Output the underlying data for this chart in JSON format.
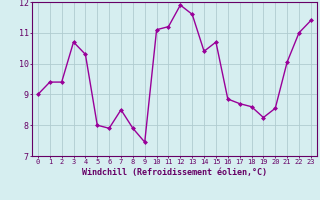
{
  "x": [
    0,
    1,
    2,
    3,
    4,
    5,
    6,
    7,
    8,
    9,
    10,
    11,
    12,
    13,
    14,
    15,
    16,
    17,
    18,
    19,
    20,
    21,
    22,
    23
  ],
  "y": [
    9.0,
    9.4,
    9.4,
    10.7,
    10.3,
    8.0,
    7.9,
    8.5,
    7.9,
    7.45,
    11.1,
    11.2,
    11.9,
    11.6,
    10.4,
    10.7,
    8.85,
    8.7,
    8.6,
    8.25,
    8.55,
    10.05,
    11.0,
    11.4
  ],
  "line_color": "#990099",
  "marker": "D",
  "marker_size": 2.0,
  "linewidth": 1.0,
  "bg_color": "#d6eef0",
  "grid_color": "#b0ccd0",
  "xlabel": "Windchill (Refroidissement éolien,°C)",
  "xlabel_color": "#660066",
  "tick_color": "#660066",
  "ylim": [
    7,
    12
  ],
  "xlim_min": -0.5,
  "xlim_max": 23.5,
  "yticks": [
    7,
    8,
    9,
    10,
    11,
    12
  ],
  "xticks": [
    0,
    1,
    2,
    3,
    4,
    5,
    6,
    7,
    8,
    9,
    10,
    11,
    12,
    13,
    14,
    15,
    16,
    17,
    18,
    19,
    20,
    21,
    22,
    23
  ],
  "xtick_fontsize": 5.0,
  "ytick_fontsize": 6.0,
  "xlabel_fontsize": 6.0,
  "border_color": "#660066"
}
